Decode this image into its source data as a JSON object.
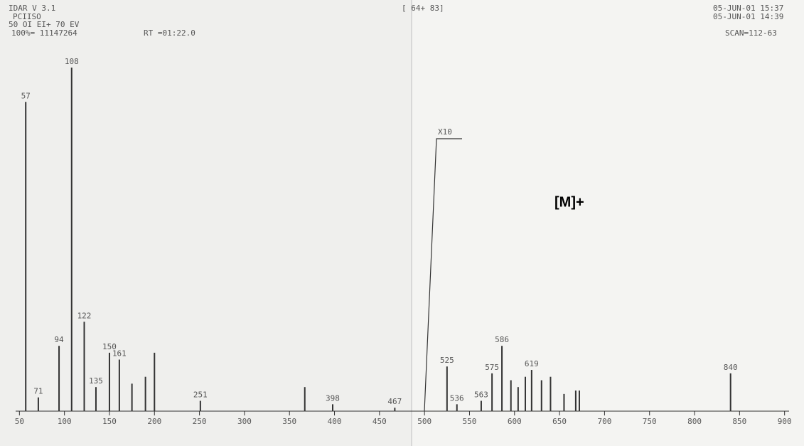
{
  "chart_data": {
    "type": "bar",
    "header": {
      "program": "IDAR V 3.1",
      "sample": "PCIISO",
      "mode": "50 OI EI+ 70 EV",
      "base": "100%= 11147264",
      "rt": "RT =01:22.0",
      "range": "[ 64+ 83]",
      "date1": "05-JUN-01 15:37",
      "date2": "05-JUN-01 14:39",
      "scan": "SCAN=112-63"
    },
    "magnification": "X10",
    "annotation": "[M]+",
    "x": [
      57,
      71,
      94,
      108,
      122,
      135,
      150,
      161,
      175,
      190,
      200,
      251,
      367,
      398,
      467,
      525,
      536,
      563,
      575,
      586,
      596,
      604,
      612,
      619,
      630,
      640,
      655,
      668,
      672,
      840
    ],
    "values": [
      90,
      4,
      19,
      100,
      26,
      7,
      17,
      15,
      8,
      10,
      17,
      3,
      7,
      2,
      1,
      13,
      2,
      3,
      11,
      19,
      9,
      7,
      10,
      12,
      9,
      10,
      5,
      6,
      6,
      11
    ],
    "peak_labels": [
      "57",
      "71",
      "94",
      "108",
      "122",
      "135",
      "150",
      "161",
      null,
      null,
      null,
      "251",
      null,
      "398",
      "467",
      "525",
      "536",
      "563",
      "575",
      "586",
      null,
      null,
      null,
      "619",
      null,
      null,
      null,
      null,
      null,
      "840"
    ],
    "color": "#333333",
    "xlim": [
      45,
      905
    ],
    "ylim": [
      0,
      100
    ],
    "xticks": [
      50,
      100,
      150,
      200,
      250,
      300,
      350,
      400,
      450,
      500,
      550,
      600,
      650,
      700,
      750,
      800,
      850,
      900
    ]
  }
}
